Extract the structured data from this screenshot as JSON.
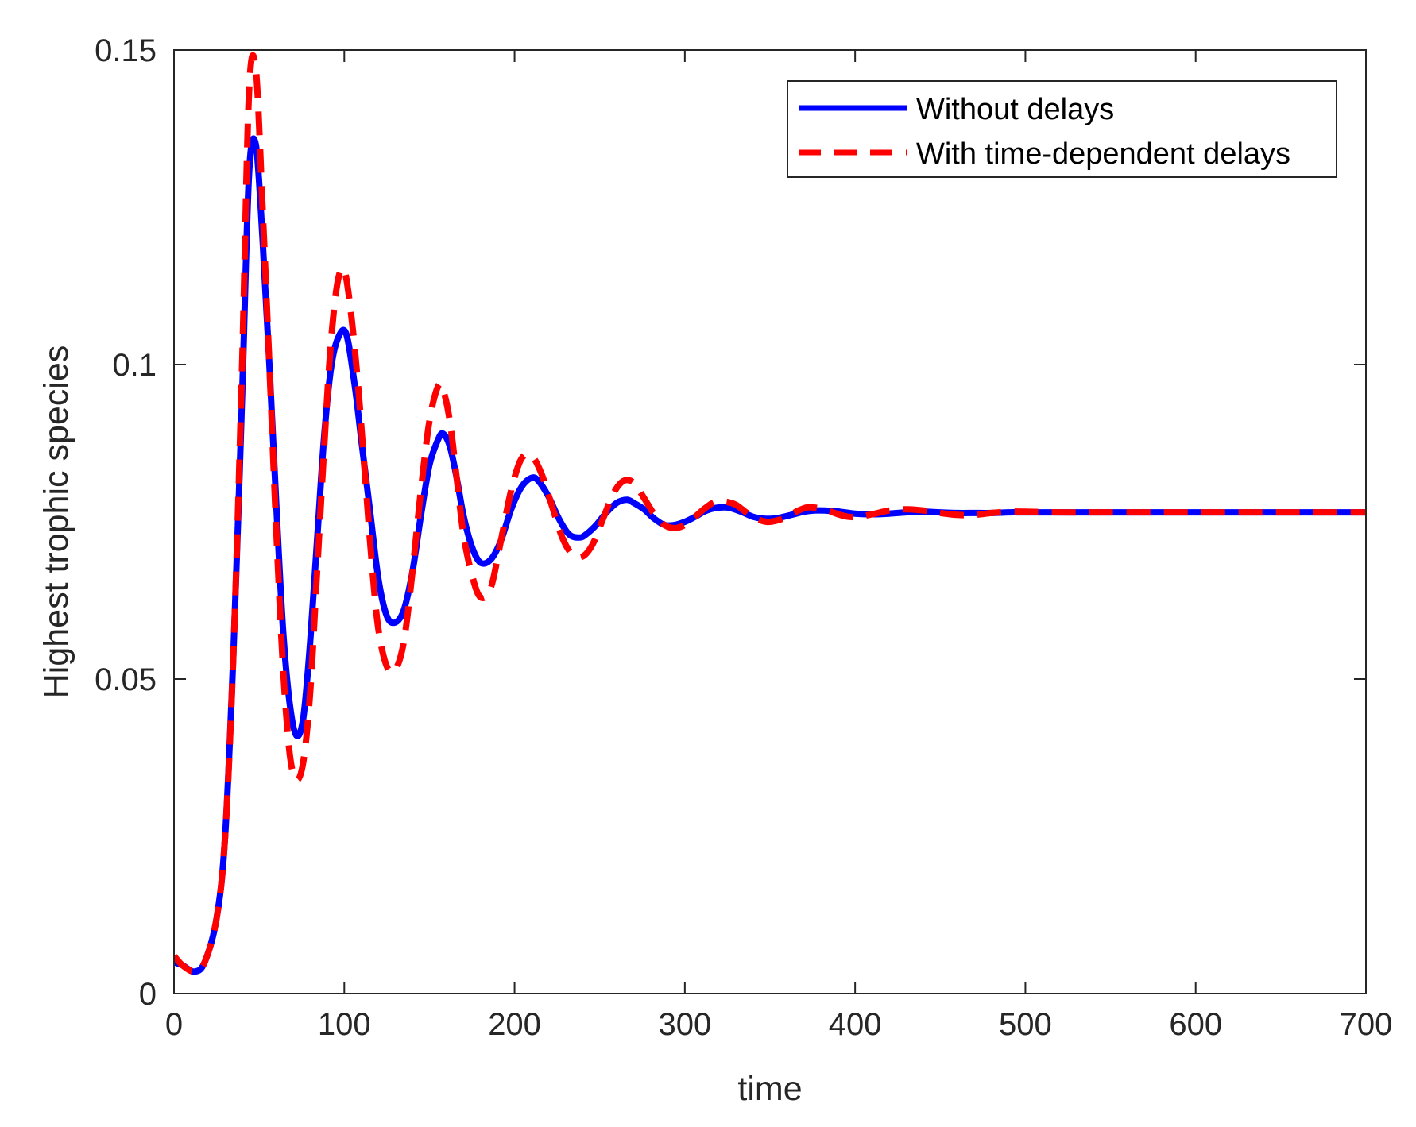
{
  "chart_data": {
    "type": "line",
    "title": "",
    "xlabel": "time",
    "ylabel": "Highest trophic species",
    "xlim": [
      0,
      700
    ],
    "ylim": [
      0,
      0.15
    ],
    "xticks": [
      0,
      100,
      200,
      300,
      400,
      500,
      600,
      700
    ],
    "xtick_labels": [
      "0",
      "100",
      "200",
      "300",
      "400",
      "500",
      "600",
      "700"
    ],
    "yticks": [
      0,
      0.05,
      0.1,
      0.15
    ],
    "ytick_labels": [
      "0",
      "0.05",
      "0.1",
      "0.15"
    ],
    "grid": false,
    "legend_position": "top-right",
    "series": [
      {
        "name": "Without delays",
        "color": "#0000ff",
        "style": "solid",
        "x": [
          0,
          5,
          12,
          18,
          25,
          30,
          35,
          40,
          44,
          48,
          52,
          56,
          60,
          64,
          68,
          72,
          76,
          80,
          84,
          88,
          92,
          96,
          101,
          106,
          110,
          115,
          120,
          125,
          130,
          135,
          140,
          145,
          150,
          155,
          158,
          162,
          166,
          170,
          175,
          180,
          186,
          192,
          198,
          204,
          210,
          214,
          220,
          226,
          232,
          238,
          242,
          248,
          254,
          260,
          266,
          270,
          276,
          282,
          288,
          294,
          300,
          306,
          312,
          318,
          324,
          328,
          334,
          340,
          346,
          352,
          358,
          364,
          370,
          376,
          382,
          388,
          394,
          400,
          410,
          420,
          430,
          440,
          450,
          460,
          470,
          480,
          490,
          500,
          520,
          550,
          600,
          650,
          700
        ],
        "y": [
          0.005,
          0.0045,
          0.0035,
          0.005,
          0.012,
          0.025,
          0.055,
          0.095,
          0.13,
          0.135,
          0.12,
          0.1,
          0.078,
          0.058,
          0.046,
          0.041,
          0.044,
          0.056,
          0.072,
          0.088,
          0.099,
          0.104,
          0.105,
          0.097,
          0.088,
          0.077,
          0.066,
          0.06,
          0.059,
          0.061,
          0.067,
          0.076,
          0.084,
          0.088,
          0.089,
          0.087,
          0.082,
          0.076,
          0.071,
          0.0685,
          0.069,
          0.072,
          0.077,
          0.0805,
          0.082,
          0.0815,
          0.079,
          0.0755,
          0.073,
          0.0725,
          0.073,
          0.0745,
          0.0765,
          0.078,
          0.0785,
          0.078,
          0.077,
          0.0755,
          0.0745,
          0.0745,
          0.075,
          0.0758,
          0.0767,
          0.0772,
          0.0773,
          0.0771,
          0.0765,
          0.0758,
          0.0755,
          0.0755,
          0.0758,
          0.0762,
          0.0766,
          0.0768,
          0.0768,
          0.0767,
          0.0765,
          0.0763,
          0.0762,
          0.0763,
          0.0765,
          0.0766,
          0.0765,
          0.0764,
          0.0764,
          0.0764,
          0.0765,
          0.0765,
          0.0765,
          0.0765,
          0.0765,
          0.0765,
          0.0765
        ]
      },
      {
        "name": "With time-dependent delays",
        "color": "#ff0000",
        "style": "dashed",
        "x": [
          0,
          5,
          12,
          18,
          25,
          30,
          35,
          40,
          44,
          48,
          52,
          56,
          60,
          64,
          68,
          72,
          76,
          80,
          84,
          88,
          92,
          96,
          100,
          104,
          108,
          112,
          116,
          120,
          125,
          130,
          135,
          140,
          145,
          150,
          155,
          158,
          162,
          166,
          170,
          175,
          180,
          186,
          192,
          198,
          204,
          210,
          216,
          222,
          228,
          234,
          240,
          246,
          252,
          258,
          264,
          270,
          276,
          282,
          288,
          294,
          300,
          306,
          312,
          318,
          324,
          330,
          336,
          342,
          348,
          354,
          360,
          366,
          372,
          378,
          384,
          390,
          396,
          402,
          410,
          420,
          430,
          440,
          450,
          460,
          470,
          480,
          490,
          500,
          520,
          550,
          600,
          650,
          700
        ],
        "y": [
          0.006,
          0.0045,
          0.0035,
          0.005,
          0.012,
          0.025,
          0.055,
          0.1,
          0.143,
          0.147,
          0.125,
          0.1,
          0.074,
          0.052,
          0.038,
          0.034,
          0.037,
          0.048,
          0.067,
          0.086,
          0.103,
          0.113,
          0.115,
          0.108,
          0.097,
          0.083,
          0.069,
          0.058,
          0.052,
          0.0515,
          0.056,
          0.067,
          0.08,
          0.091,
          0.0965,
          0.096,
          0.091,
          0.082,
          0.073,
          0.0665,
          0.063,
          0.0645,
          0.072,
          0.08,
          0.085,
          0.0855,
          0.0825,
          0.0775,
          0.0725,
          0.0698,
          0.0695,
          0.0715,
          0.0755,
          0.0795,
          0.0815,
          0.0812,
          0.0788,
          0.0762,
          0.0745,
          0.074,
          0.0745,
          0.0758,
          0.0772,
          0.0782,
          0.0782,
          0.0777,
          0.0765,
          0.0755,
          0.075,
          0.0752,
          0.0758,
          0.0767,
          0.0773,
          0.0772,
          0.0768,
          0.0762,
          0.0758,
          0.0758,
          0.0762,
          0.0768,
          0.077,
          0.0768,
          0.0764,
          0.0761,
          0.0761,
          0.0764,
          0.0766,
          0.0766,
          0.0765,
          0.0765,
          0.0765,
          0.0765,
          0.0765
        ]
      }
    ]
  }
}
